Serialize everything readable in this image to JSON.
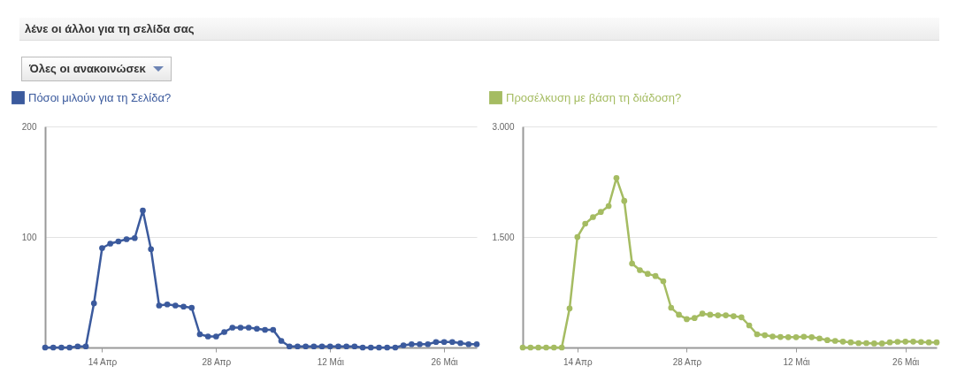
{
  "chart_data": [
    {
      "type": "line",
      "title": "λένε οι άλλοι για τη σελίδα σας",
      "annotations": [
        "Όλες οι ανακοινώσεκ"
      ],
      "x": [
        "--04-07",
        "--04-08",
        "--04-09",
        "--04-10",
        "--04-11",
        "--04-12",
        "--04-13",
        "--04-14",
        "--04-15",
        "--04-16",
        "--04-17",
        "--04-18",
        "--04-19",
        "--04-20",
        "--04-21",
        "--04-22",
        "--04-23",
        "--04-24",
        "--04-25",
        "--04-26",
        "--04-27",
        "--04-28",
        "--04-29",
        "--04-30",
        "--05-01",
        "--05-02",
        "--05-03",
        "--05-04",
        "--05-05",
        "--05-06",
        "--05-07",
        "--05-08",
        "--05-09",
        "--05-10",
        "--05-11",
        "--05-12",
        "--05-13",
        "--05-14",
        "--05-15",
        "--05-16",
        "--05-17",
        "--05-18",
        "--05-19",
        "--05-20",
        "--05-21",
        "--05-22",
        "--05-23",
        "--05-24",
        "--05-25",
        "--05-26",
        "--05-27",
        "--05-28",
        "--05-29",
        "--05-30"
      ],
      "series": [
        {
          "name": "Πόσοι μιλούν για τη Σελίδα?",
          "color": "#3b5a9d",
          "values": [
            0,
            0,
            0,
            0,
            1,
            1,
            40,
            90,
            94,
            96,
            98,
            99,
            124,
            89,
            38,
            39,
            38,
            37,
            36,
            12,
            10,
            10,
            14,
            18,
            18,
            18,
            17,
            16,
            16,
            6,
            1,
            1,
            1,
            1,
            1,
            1,
            1,
            1,
            1,
            0,
            0,
            0,
            0,
            0,
            2,
            3,
            3,
            3,
            5,
            5,
            5,
            4,
            3,
            3
          ]
        }
      ],
      "xlim": [
        "--04-07",
        "--05-30"
      ],
      "xticks": [
        {
          "value": "--04-14",
          "label": "14 Απρ"
        },
        {
          "value": "--04-28",
          "label": "28 Απρ"
        },
        {
          "value": "--05-12",
          "label": "12 Μάι"
        },
        {
          "value": "--05-26",
          "label": "26 Μάι"
        }
      ],
      "ylim": [
        0,
        200
      ],
      "yticks": [
        100,
        200
      ],
      "grid": "y",
      "legend": "top left",
      "marker": "circle",
      "line_style": "solid"
    },
    {
      "type": "line",
      "x": [
        "--04-07",
        "--04-08",
        "--04-09",
        "--04-10",
        "--04-11",
        "--04-12",
        "--04-13",
        "--04-14",
        "--04-15",
        "--04-16",
        "--04-17",
        "--04-18",
        "--04-19",
        "--04-20",
        "--04-21",
        "--04-22",
        "--04-23",
        "--04-24",
        "--04-25",
        "--04-26",
        "--04-27",
        "--04-28",
        "--04-29",
        "--04-30",
        "--05-01",
        "--05-02",
        "--05-03",
        "--05-04",
        "--05-05",
        "--05-06",
        "--05-07",
        "--05-08",
        "--05-09",
        "--05-10",
        "--05-11",
        "--05-12",
        "--05-13",
        "--05-14",
        "--05-15",
        "--05-16",
        "--05-17",
        "--05-18",
        "--05-19",
        "--05-20",
        "--05-21",
        "--05-22",
        "--05-23",
        "--05-24",
        "--05-25",
        "--05-26",
        "--05-27",
        "--05-28",
        "--05-29",
        "--05-30"
      ],
      "series": [
        {
          "name": "Προσέλκυση με βάση τη διάδοση?",
          "color": "#a5bc62",
          "values": [
            0,
            0,
            0,
            0,
            0,
            0,
            530,
            1500,
            1680,
            1770,
            1840,
            1920,
            2300,
            1990,
            1140,
            1050,
            1000,
            970,
            900,
            540,
            445,
            385,
            400,
            460,
            445,
            437,
            437,
            425,
            410,
            300,
            180,
            167,
            150,
            143,
            140,
            140,
            147,
            140,
            123,
            100,
            90,
            80,
            70,
            60,
            60,
            55,
            55,
            70,
            78,
            80,
            80,
            75,
            70,
            70
          ]
        }
      ],
      "xlim": [
        "--04-07",
        "--05-30"
      ],
      "xticks": [
        {
          "value": "--04-14",
          "label": "14 Απρ"
        },
        {
          "value": "--04-28",
          "label": "28 Απρ"
        },
        {
          "value": "--05-12",
          "label": "12 Μάι"
        },
        {
          "value": "--05-26",
          "label": "26 Μάι"
        }
      ],
      "ylim": [
        0,
        3000
      ],
      "yticks": [
        {
          "value": 1500,
          "label": "1.500"
        },
        {
          "value": 3000,
          "label": "3.000"
        }
      ],
      "grid": "y",
      "legend": "top left",
      "marker": "circle",
      "line_style": "solid"
    }
  ]
}
